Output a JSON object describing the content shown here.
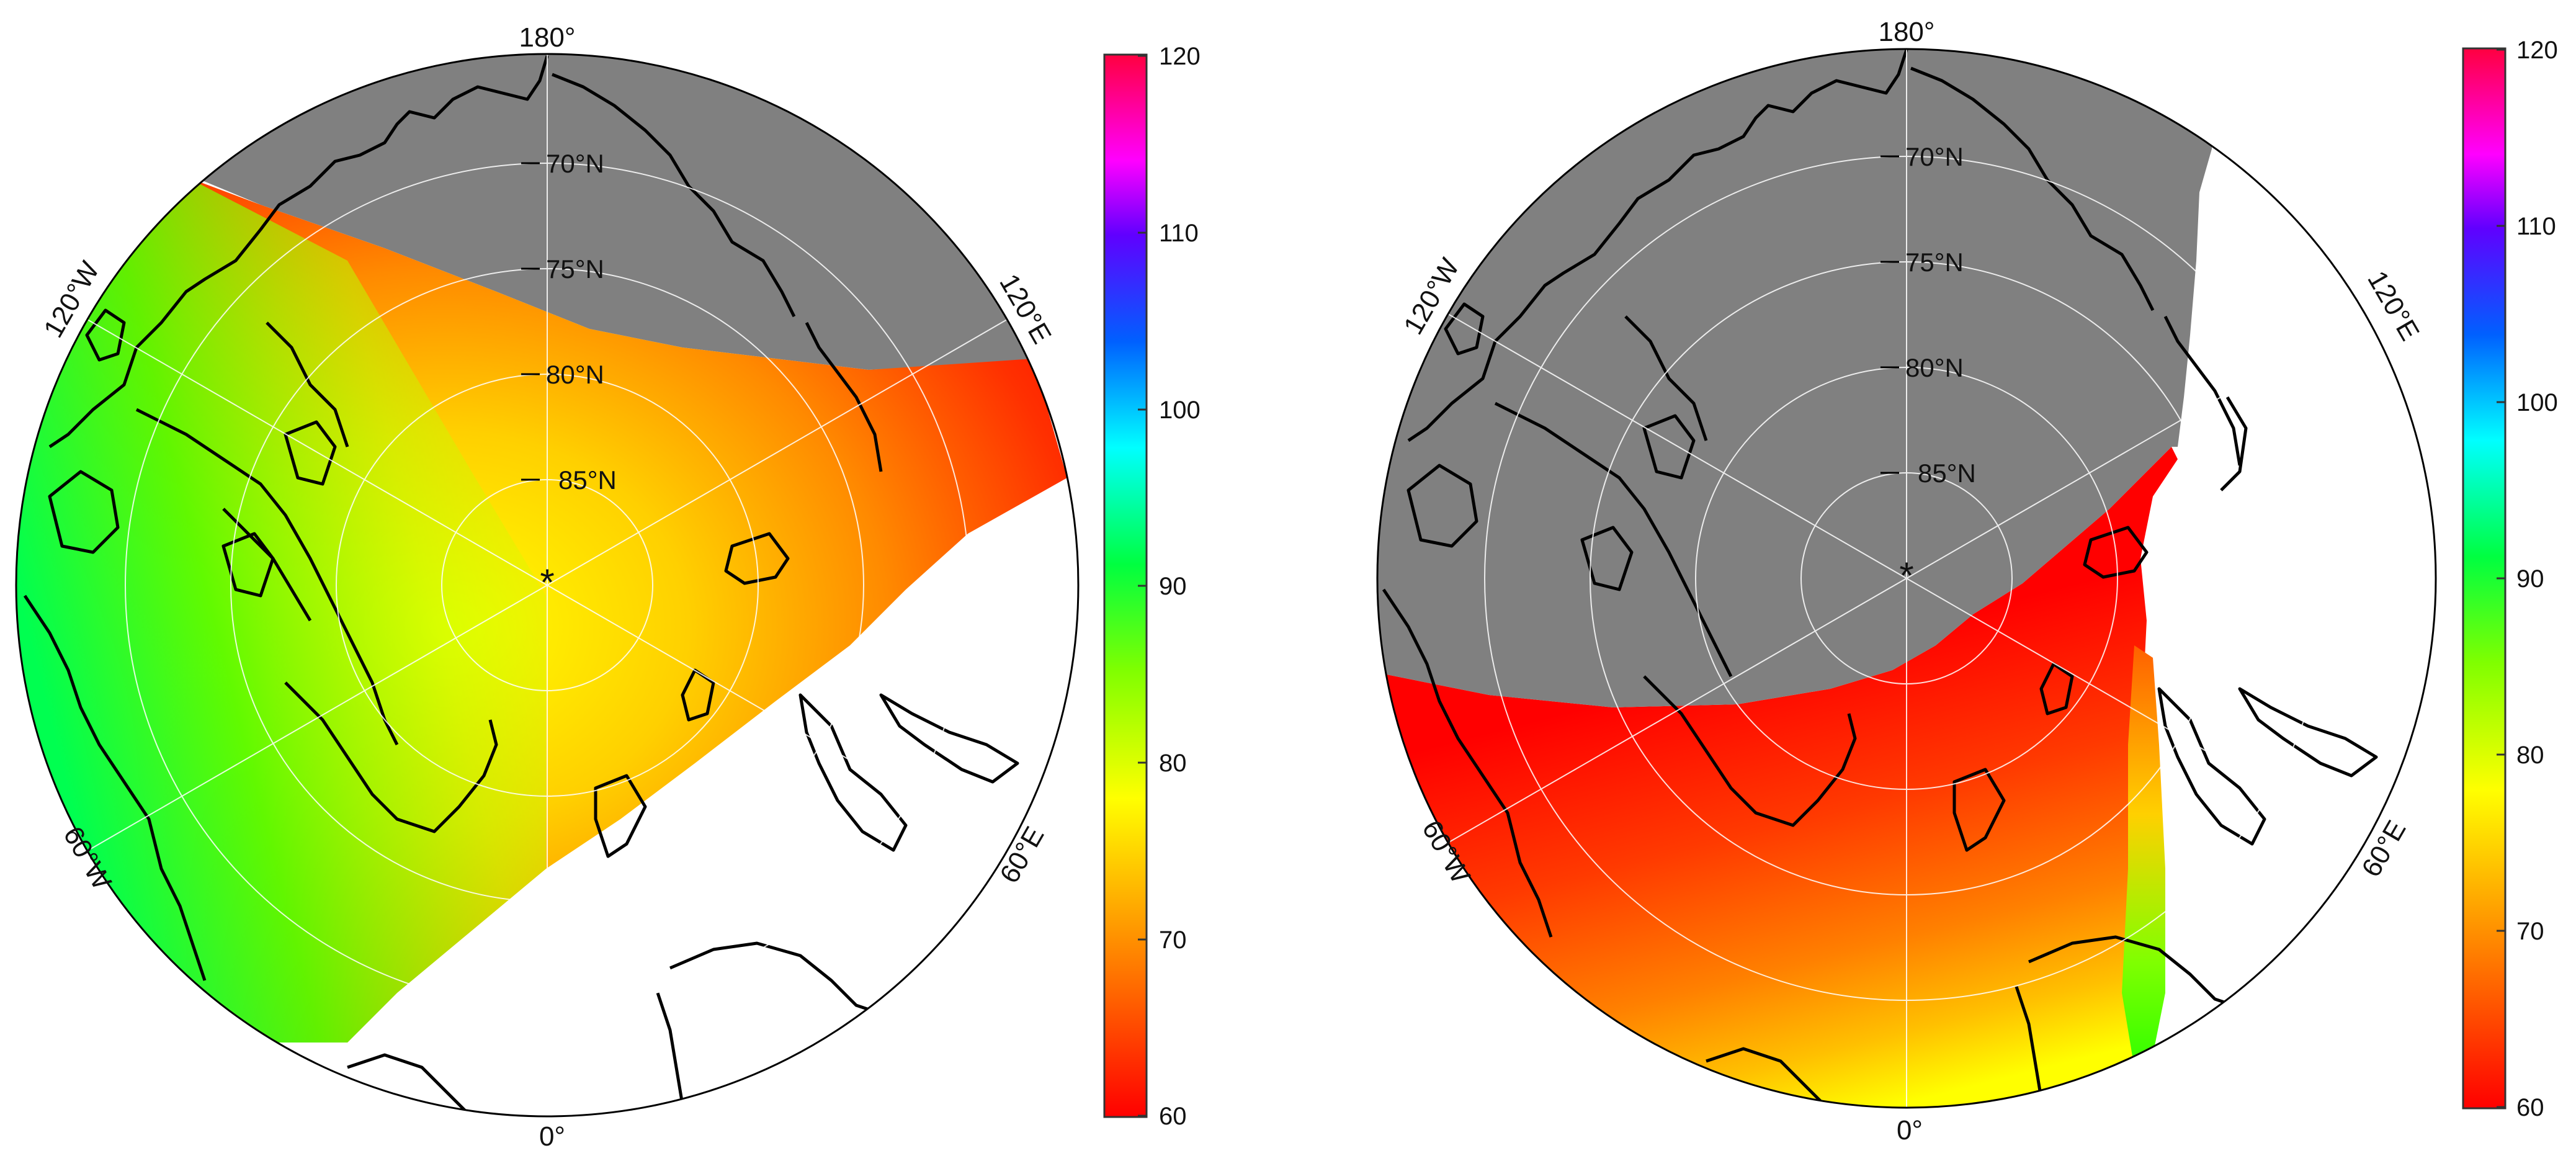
{
  "panels": [
    {
      "id": "left",
      "center_marker": "*",
      "meridian_labels": [
        "180°",
        "120°W",
        "120°E",
        "60°W",
        "60°E",
        "0°"
      ],
      "latitude_labels": [
        "70°N",
        "75°N",
        "80°N",
        "85°N"
      ],
      "colorbar": {
        "ticks": [
          "120",
          "110",
          "100",
          "90",
          "80",
          "70",
          "60"
        ],
        "min": 60,
        "max": 120
      }
    },
    {
      "id": "right",
      "center_marker": "*",
      "meridian_labels": [
        "180°",
        "120°W",
        "120°E",
        "60°W",
        "60°E",
        "0°"
      ],
      "latitude_labels": [
        "70°N",
        "75°N",
        "80°N",
        "85°N"
      ],
      "colorbar": {
        "ticks": [
          "120",
          "110",
          "100",
          "90",
          "80",
          "70",
          "60"
        ],
        "min": 60,
        "max": 120
      }
    }
  ],
  "colors": {
    "no_data": "#808080",
    "colormap": [
      "#ff0000",
      "#ff8000",
      "#ffff00",
      "#80ff00",
      "#00ff60",
      "#00ffff",
      "#0060ff",
      "#6000ff",
      "#ff00ff",
      "#ff0040"
    ],
    "coastline": "#000000",
    "graticule": "#ffffff"
  }
}
